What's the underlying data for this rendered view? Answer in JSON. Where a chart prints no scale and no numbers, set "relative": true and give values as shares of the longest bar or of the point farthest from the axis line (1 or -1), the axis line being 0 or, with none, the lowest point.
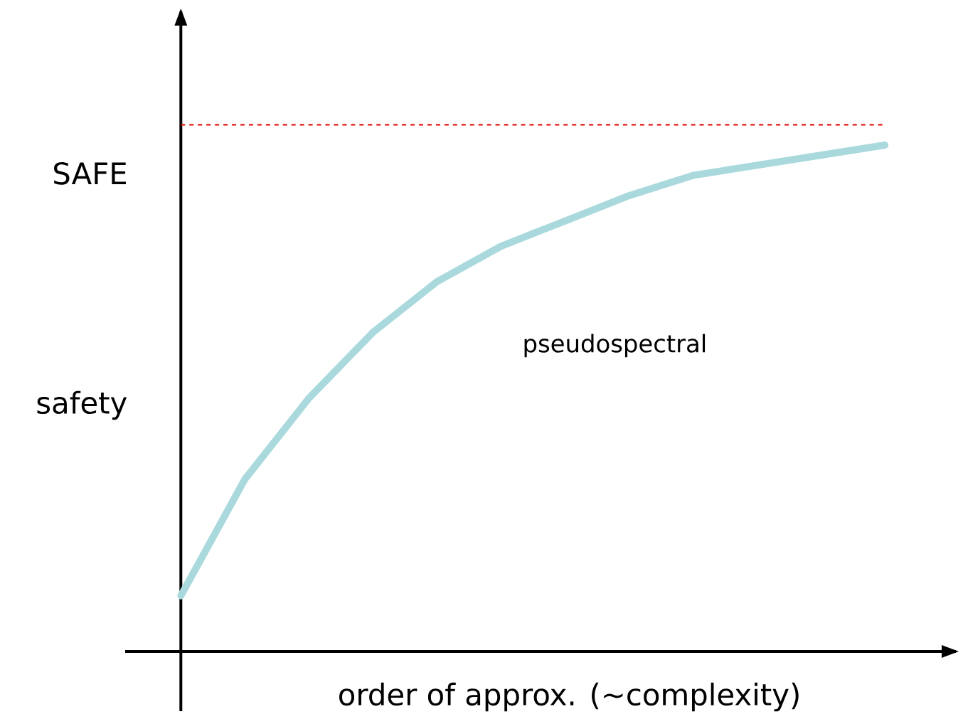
{
  "chart_data": {
    "type": "line",
    "relative": true,
    "xlabel": "order of approx. (~complexity)",
    "ylabel": "safety",
    "annotations": [
      "SAFE"
    ],
    "categories": [
      null,
      null,
      null,
      null,
      null,
      null,
      null,
      null,
      null,
      null,
      null,
      null
    ],
    "series": [
      {
        "name": "pseudospectral",
        "color": "#a9d9dc",
        "values": [
          0.11,
          0.34,
          0.5,
          0.63,
          0.73,
          0.8,
          0.85,
          0.9,
          0.94,
          0.96,
          0.98,
          1.0
        ]
      }
    ],
    "ref_lines": [
      {
        "axis": "y",
        "value": 1.04,
        "color": "#e00000",
        "line_style": "dashed"
      }
    ]
  }
}
